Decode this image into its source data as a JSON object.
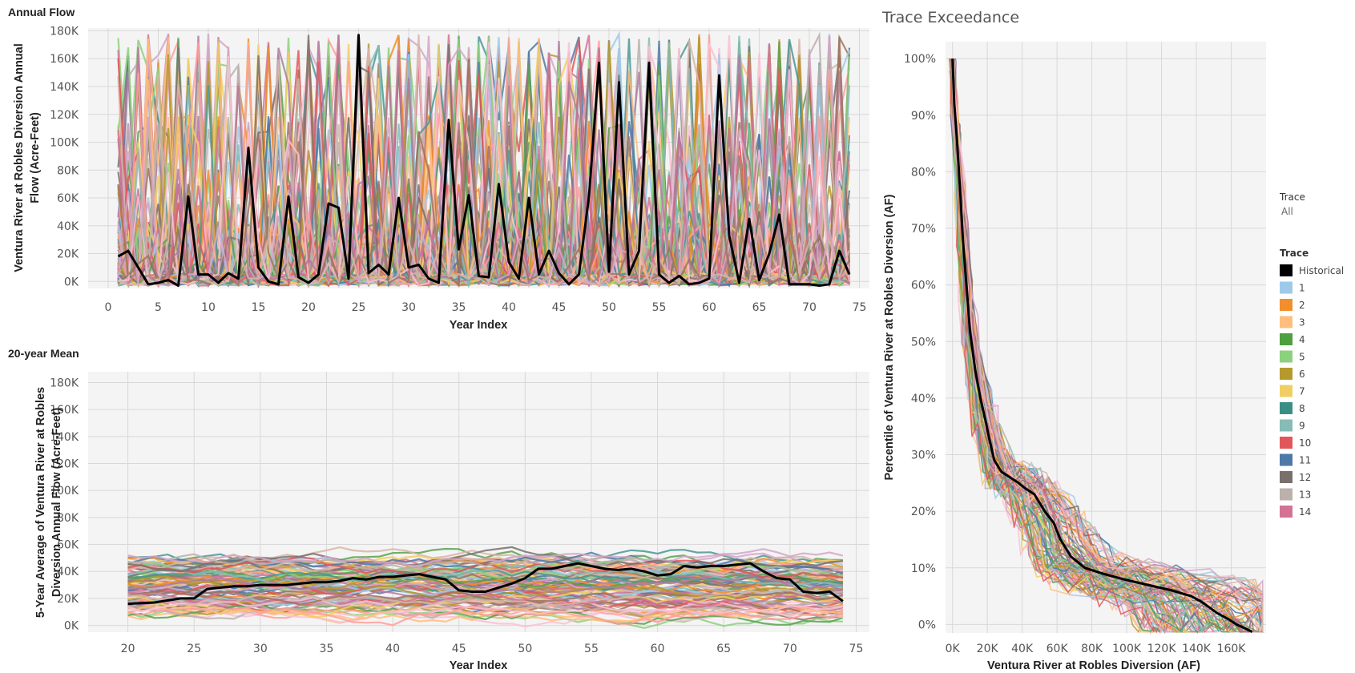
{
  "chart_data": [
    {
      "id": "annual",
      "type": "line",
      "title": "Annual Flow",
      "xlabel": "Year Index",
      "ylabel": [
        "Ventura River at Robles Diversion Annual",
        "Flow (Acre-Feet)"
      ],
      "xlim": [
        -2,
        76
      ],
      "ylim": [
        -5000,
        182000
      ],
      "x_ticks": [
        0,
        5,
        10,
        15,
        20,
        25,
        30,
        35,
        40,
        45,
        50,
        55,
        60,
        65,
        70,
        75
      ],
      "y_ticks": [
        0,
        20000,
        40000,
        60000,
        80000,
        100000,
        120000,
        140000,
        160000,
        180000
      ],
      "y_tick_labels": [
        "0K",
        "20K",
        "40K",
        "60K",
        "80K",
        "100K",
        "120K",
        "140K",
        "160K",
        "180K"
      ],
      "grid": true,
      "series": [
        {
          "name": "Historical",
          "color": "#000000",
          "x": [
            1,
            2,
            3,
            4,
            5,
            6,
            7,
            8,
            9,
            10,
            11,
            12,
            13,
            14,
            15,
            16,
            17,
            18,
            19,
            20,
            21,
            22,
            23,
            24,
            25,
            26,
            27,
            28,
            29,
            30,
            31,
            32,
            33,
            34,
            35,
            36,
            37,
            38,
            39,
            40,
            41,
            42,
            43,
            44,
            45,
            46,
            47,
            48,
            49,
            50,
            51,
            52,
            53,
            54,
            55,
            56,
            57,
            58,
            59,
            60,
            61,
            62,
            63,
            64,
            65,
            66,
            67,
            68,
            69,
            70,
            71,
            72,
            73,
            74
          ],
          "y": [
            18000,
            22000,
            10000,
            -2000,
            -1000,
            1000,
            -3000,
            61000,
            5000,
            5000,
            -1000,
            6000,
            2000,
            96000,
            10000,
            0,
            -2000,
            61000,
            3000,
            -1000,
            5000,
            56000,
            53000,
            2000,
            177000,
            6000,
            12000,
            5000,
            60000,
            10000,
            12000,
            2000,
            -1000,
            116000,
            23000,
            62000,
            4000,
            3000,
            70000,
            14000,
            2000,
            60000,
            5000,
            22000,
            6000,
            -2000,
            5000,
            61000,
            157000,
            7000,
            143000,
            5000,
            22000,
            157000,
            5000,
            -1000,
            4000,
            -2000,
            -1000,
            2000,
            148000,
            33000,
            -1000,
            45000,
            1000,
            20000,
            48000,
            -2000,
            -2000,
            -2000,
            -3000,
            -2000,
            22000,
            5000
          ]
        }
      ],
      "background_traces": "100 synthetic traces"
    },
    {
      "id": "mean20",
      "type": "line",
      "title": "20-year Mean",
      "xlabel": "Year Index",
      "ylabel": [
        "5-Year Average of Ventura River at Robles",
        "Diversion Annual Flow (Acre-Feet)"
      ],
      "xlim": [
        17,
        76
      ],
      "ylim": [
        -5000,
        188000
      ],
      "x_ticks": [
        20,
        25,
        30,
        35,
        40,
        45,
        50,
        55,
        60,
        65,
        70,
        75
      ],
      "y_ticks": [
        0,
        20000,
        40000,
        60000,
        80000,
        100000,
        120000,
        140000,
        160000,
        180000
      ],
      "y_tick_labels": [
        "0K",
        "20K",
        "40K",
        "60K",
        "80K",
        "100K",
        "120K",
        "140K",
        "160K",
        "180K"
      ],
      "grid": true,
      "series": [
        {
          "name": "Historical",
          "color": "#000000",
          "x": [
            20,
            22,
            24,
            25,
            26,
            27,
            28,
            29,
            30,
            31,
            32,
            33,
            34,
            35,
            36,
            37,
            38,
            39,
            40,
            41,
            42,
            43,
            44,
            45,
            46,
            47,
            48,
            49,
            50,
            51,
            52,
            53,
            54,
            55,
            56,
            57,
            58,
            59,
            60,
            61,
            62,
            63,
            64,
            65,
            66,
            67,
            68,
            69,
            70,
            71,
            72,
            73,
            74
          ],
          "y": [
            16000,
            17000,
            20000,
            20000,
            27000,
            28000,
            29000,
            29000,
            30000,
            30000,
            30000,
            31000,
            32000,
            32000,
            33000,
            35000,
            34000,
            36000,
            36000,
            37000,
            38000,
            36000,
            34000,
            26000,
            25000,
            25000,
            28000,
            31000,
            35000,
            42000,
            42000,
            44000,
            46000,
            44000,
            42000,
            41000,
            42000,
            40000,
            37000,
            38000,
            44000,
            43000,
            44000,
            44000,
            45000,
            46000,
            40000,
            35000,
            34000,
            25000,
            24000,
            25000,
            18000
          ]
        }
      ],
      "background_traces": "100 synthetic traces"
    },
    {
      "id": "exceed",
      "type": "line",
      "title": "Trace Exceedance",
      "xlabel": "Ventura River at Robles Diversion (AF)",
      "ylabel": [
        "Percentile of Ventura River at Robles Diversion (AF)"
      ],
      "xlim": [
        -4000,
        180000
      ],
      "ylim": [
        -1.5,
        103
      ],
      "x_ticks": [
        0,
        20000,
        40000,
        60000,
        80000,
        100000,
        120000,
        140000,
        160000
      ],
      "x_tick_labels": [
        "0K",
        "20K",
        "40K",
        "60K",
        "80K",
        "100K",
        "120K",
        "140K",
        "160K"
      ],
      "y_ticks": [
        0,
        10,
        20,
        30,
        40,
        50,
        60,
        70,
        80,
        90,
        100
      ],
      "y_tick_labels": [
        "0%",
        "10%",
        "20%",
        "30%",
        "40%",
        "50%",
        "60%",
        "70%",
        "80%",
        "90%",
        "100%"
      ],
      "grid": true,
      "series": [
        {
          "name": "Historical",
          "color": "#000000",
          "x": [
            0,
            1000,
            2500,
            4500,
            6000,
            8000,
            10000,
            13000,
            16000,
            19000,
            21000,
            24000,
            28000,
            33000,
            38000,
            42000,
            47000,
            53000,
            58000,
            62000,
            68000,
            76000,
            86000,
            98000,
            112000,
            126000,
            137000,
            143000,
            152000,
            158000,
            163000,
            168000,
            172000
          ],
          "y": [
            100,
            92,
            86,
            76,
            68,
            60,
            52,
            45,
            40,
            36,
            33,
            29,
            27,
            26,
            25,
            24,
            23,
            20,
            18,
            15,
            12,
            10,
            9,
            8,
            7,
            6,
            5,
            4,
            2,
            1,
            0,
            -0.7,
            -1.3
          ]
        }
      ],
      "background_traces": "100 synthetic traces"
    }
  ],
  "legend": {
    "filter_title": "Trace",
    "filter_value": "All",
    "color_title": "Trace",
    "items": [
      {
        "label": "Historical",
        "color": "#000000"
      },
      {
        "label": "1",
        "color": "#9ecae9"
      },
      {
        "label": "2",
        "color": "#f28e2b"
      },
      {
        "label": "3",
        "color": "#ffbe7d"
      },
      {
        "label": "4",
        "color": "#4e9f3d"
      },
      {
        "label": "5",
        "color": "#8cd17d"
      },
      {
        "label": "6",
        "color": "#b6992d"
      },
      {
        "label": "7",
        "color": "#f1ce63"
      },
      {
        "label": "8",
        "color": "#3a8f85"
      },
      {
        "label": "9",
        "color": "#86bcb6"
      },
      {
        "label": "10",
        "color": "#e15759"
      },
      {
        "label": "11",
        "color": "#4e79a7"
      },
      {
        "label": "12",
        "color": "#79706e"
      },
      {
        "label": "13",
        "color": "#bab0ac"
      },
      {
        "label": "14",
        "color": "#d37295"
      }
    ]
  },
  "palette": [
    "#4e79a7",
    "#9ecae9",
    "#f28e2b",
    "#ffbe7d",
    "#59a14f",
    "#8cd17d",
    "#b6992d",
    "#f1ce63",
    "#499894",
    "#86bcb6",
    "#e15759",
    "#ff9d9a",
    "#79706e",
    "#bab0ac",
    "#d37295",
    "#fabfd2",
    "#b07aa1",
    "#d4a6c8",
    "#9d7660",
    "#d7b5a6"
  ]
}
